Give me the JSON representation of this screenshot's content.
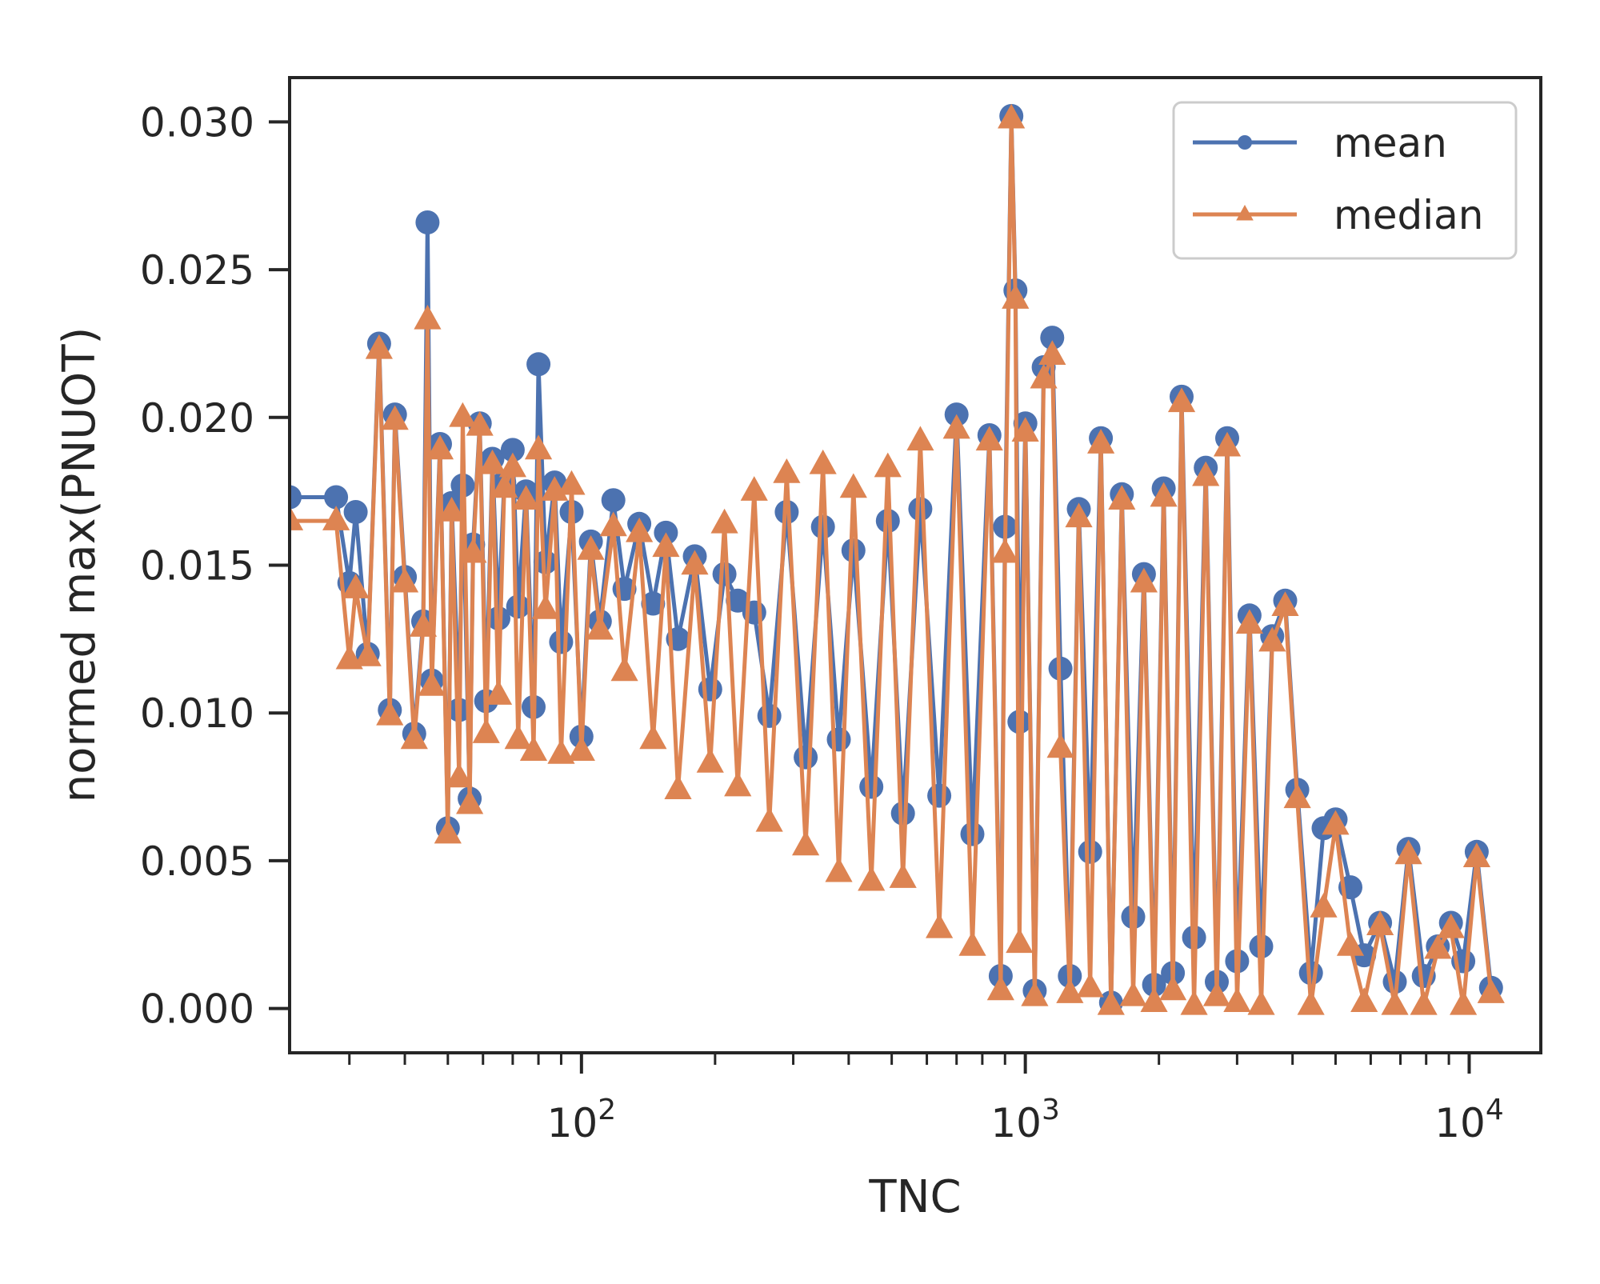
{
  "chart_data": {
    "type": "line",
    "xlabel": "TNC",
    "ylabel": "normed max(PNUOT)",
    "xscale": "log",
    "xlim": [
      22,
      14500
    ],
    "ylim": [
      -0.0015,
      0.0315
    ],
    "x_ticks": [
      {
        "value": 100,
        "base": "10",
        "exp": "2"
      },
      {
        "value": 1000,
        "base": "10",
        "exp": "3"
      },
      {
        "value": 10000,
        "base": "10",
        "exp": "4"
      }
    ],
    "y_ticks": [
      {
        "value": 0.0,
        "label": "0.000"
      },
      {
        "value": 0.005,
        "label": "0.005"
      },
      {
        "value": 0.01,
        "label": "0.010"
      },
      {
        "value": 0.015,
        "label": "0.015"
      },
      {
        "value": 0.02,
        "label": "0.020"
      },
      {
        "value": 0.025,
        "label": "0.025"
      },
      {
        "value": 0.03,
        "label": "0.030"
      }
    ],
    "grid": false,
    "legend": {
      "position": "top-right"
    },
    "series": [
      {
        "name": "mean",
        "color": "#4c72b0",
        "marker": "circle",
        "x": [
          22,
          28,
          30,
          31,
          33,
          35,
          37,
          38,
          40,
          42,
          44,
          45,
          46,
          48,
          50,
          51,
          53,
          54,
          56,
          57,
          59,
          61,
          63,
          65,
          67,
          70,
          72,
          75,
          78,
          80,
          83,
          87,
          90,
          95,
          100,
          105,
          110,
          118,
          125,
          135,
          145,
          155,
          165,
          180,
          195,
          210,
          225,
          245,
          265,
          290,
          320,
          350,
          380,
          410,
          450,
          490,
          530,
          580,
          640,
          700,
          760,
          830,
          880,
          900,
          930,
          950,
          970,
          1000,
          1050,
          1100,
          1150,
          1200,
          1260,
          1320,
          1400,
          1480,
          1560,
          1650,
          1750,
          1850,
          1950,
          2050,
          2150,
          2250,
          2400,
          2550,
          2700,
          2850,
          3000,
          3200,
          3400,
          3600,
          3850,
          4100,
          4400,
          4700,
          5000,
          5400,
          5800,
          6300,
          6800,
          7300,
          7900,
          8500,
          9100,
          9700,
          10400,
          11200
        ],
        "y": [
          0.0173,
          0.0173,
          0.0144,
          0.0168,
          0.012,
          0.0225,
          0.0101,
          0.0201,
          0.0146,
          0.0093,
          0.0131,
          0.0266,
          0.0111,
          0.0191,
          0.0061,
          0.0171,
          0.0101,
          0.0177,
          0.0071,
          0.0157,
          0.0198,
          0.0104,
          0.0186,
          0.0132,
          0.0178,
          0.0189,
          0.0136,
          0.0175,
          0.0102,
          0.0218,
          0.0151,
          0.0178,
          0.0124,
          0.0168,
          0.0092,
          0.0158,
          0.0131,
          0.0172,
          0.0142,
          0.0164,
          0.0137,
          0.0161,
          0.0125,
          0.0153,
          0.0108,
          0.0147,
          0.0138,
          0.0134,
          0.0099,
          0.0168,
          0.0085,
          0.0163,
          0.0091,
          0.0155,
          0.0075,
          0.0165,
          0.0066,
          0.0169,
          0.0072,
          0.0201,
          0.0059,
          0.0194,
          0.0011,
          0.0163,
          0.0302,
          0.0243,
          0.0097,
          0.0198,
          0.0006,
          0.0217,
          0.0227,
          0.0115,
          0.0011,
          0.0169,
          0.0053,
          0.0193,
          0.0002,
          0.0174,
          0.0031,
          0.0147,
          0.0008,
          0.0176,
          0.0012,
          0.0207,
          0.0024,
          0.0183,
          0.0009,
          0.0193,
          0.0016,
          0.0133,
          0.0021,
          0.0126,
          0.0138,
          0.0074,
          0.0012,
          0.0061,
          0.0064,
          0.0041,
          0.0018,
          0.0029,
          0.0009,
          0.0054,
          0.0011,
          0.0021,
          0.0029,
          0.0016,
          0.0053,
          0.0007
        ]
      },
      {
        "name": "median",
        "color": "#dd8452",
        "marker": "triangle",
        "x": [
          22,
          28,
          30,
          31,
          33,
          35,
          37,
          38,
          40,
          42,
          44,
          45,
          46,
          48,
          50,
          51,
          53,
          54,
          56,
          57,
          59,
          61,
          63,
          65,
          67,
          70,
          72,
          75,
          78,
          80,
          83,
          87,
          90,
          95,
          100,
          105,
          110,
          118,
          125,
          135,
          145,
          155,
          165,
          180,
          195,
          210,
          225,
          245,
          265,
          290,
          320,
          350,
          380,
          410,
          450,
          490,
          530,
          580,
          640,
          700,
          760,
          830,
          880,
          900,
          930,
          950,
          970,
          1000,
          1050,
          1100,
          1150,
          1200,
          1260,
          1320,
          1400,
          1480,
          1560,
          1650,
          1750,
          1850,
          1950,
          2050,
          2150,
          2250,
          2400,
          2550,
          2700,
          2850,
          3000,
          3200,
          3400,
          3600,
          3850,
          4100,
          4400,
          4700,
          5000,
          5400,
          5800,
          6300,
          6800,
          7300,
          7900,
          8500,
          9100,
          9700,
          10400,
          11200
        ],
        "y": [
          0.0165,
          0.0165,
          0.0118,
          0.0142,
          0.0119,
          0.0223,
          0.0099,
          0.0199,
          0.0144,
          0.0091,
          0.0129,
          0.0233,
          0.0109,
          0.0189,
          0.0059,
          0.0168,
          0.0078,
          0.02,
          0.0069,
          0.0154,
          0.0197,
          0.0093,
          0.0184,
          0.0106,
          0.0176,
          0.0183,
          0.0091,
          0.0172,
          0.0087,
          0.0189,
          0.0135,
          0.0175,
          0.0086,
          0.0177,
          0.0087,
          0.0155,
          0.0128,
          0.0163,
          0.0114,
          0.0161,
          0.0091,
          0.0156,
          0.0074,
          0.015,
          0.0083,
          0.0164,
          0.0075,
          0.0175,
          0.0063,
          0.0181,
          0.0055,
          0.0184,
          0.0046,
          0.0176,
          0.0043,
          0.0183,
          0.0044,
          0.0192,
          0.0027,
          0.0196,
          0.0021,
          0.0192,
          0.0006,
          0.0154,
          0.0301,
          0.024,
          0.0022,
          0.0195,
          0.0004,
          0.0213,
          0.0221,
          0.0088,
          0.0005,
          0.0166,
          0.0007,
          0.0191,
          0.0001,
          0.0172,
          0.0004,
          0.0144,
          0.0002,
          0.0173,
          0.0006,
          0.0205,
          0.0001,
          0.018,
          0.0004,
          0.019,
          0.0002,
          0.013,
          0.0001,
          0.0124,
          0.0136,
          0.0071,
          0.0001,
          0.0034,
          0.0062,
          0.0021,
          0.0002,
          0.0028,
          0.0001,
          0.0052,
          0.0001,
          0.002,
          0.0027,
          0.0001,
          0.0051,
          0.0005
        ]
      }
    ]
  }
}
